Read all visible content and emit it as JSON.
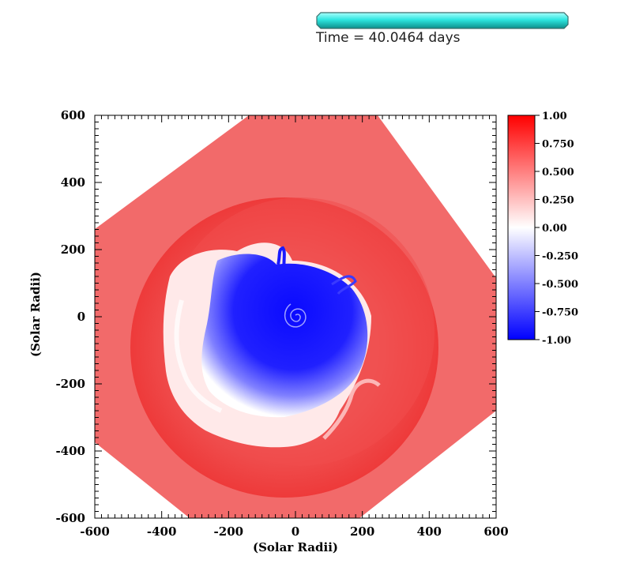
{
  "header": {
    "time_label": "Time = 40.0464 days",
    "progress_color": "#2ee6e0"
  },
  "chart_data": {
    "type": "heatmap",
    "title": "",
    "xlabel": "(Solar Radii)",
    "ylabel": "(Solar Radii)",
    "xlim": [
      -600,
      600
    ],
    "ylim": [
      -600,
      600
    ],
    "x_ticks": [
      "-600",
      "-400",
      "-200",
      "0",
      "200",
      "400",
      "600"
    ],
    "y_ticks": [
      "600",
      "400",
      "200",
      "0",
      "-200",
      "-400",
      "-600"
    ],
    "colorbar": {
      "range": [
        -1.0,
        1.0
      ],
      "ticks": [
        "1.00",
        "0.750",
        "0.500",
        "0.250",
        "0.00",
        "-0.250",
        "-0.500",
        "-0.750",
        "-1.00"
      ],
      "colors": [
        "#ff0000",
        "#ffffff",
        "#0000ff"
      ]
    },
    "colors": {
      "outer_region": "#f26a6a",
      "shell": "#ef4848",
      "core": "#1a1aff",
      "boundary": "#ffffff"
    },
    "grid": false
  }
}
